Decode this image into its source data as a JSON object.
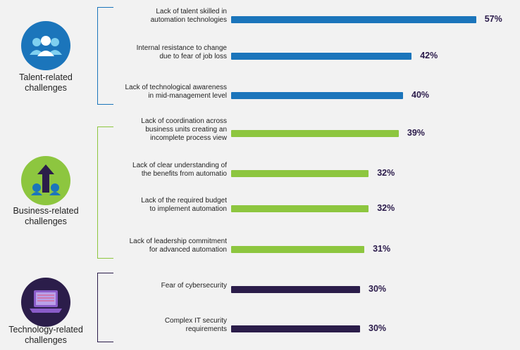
{
  "colors": {
    "talent": "#1b75bb",
    "business": "#8dc63f",
    "technology": "#2b1d4a"
  },
  "groups": [
    {
      "key": "talent",
      "label_line1": "Talent-related",
      "label_line2": "challenges",
      "icon": "people-icon"
    },
    {
      "key": "business",
      "label_line1": "Business-related",
      "label_line2": "challenges",
      "icon": "growth-arrow-icon"
    },
    {
      "key": "technology",
      "label_line1": "Technology-related",
      "label_line2": "challenges",
      "icon": "laptop-icon"
    }
  ],
  "chart_data": {
    "type": "bar",
    "orientation": "horizontal",
    "xlim": [
      0,
      60
    ],
    "bars": [
      {
        "group": "talent",
        "lines": [
          "Lack of talent skilled in",
          "automation technologies"
        ],
        "value": 57,
        "value_label": "57%"
      },
      {
        "group": "talent",
        "lines": [
          "Internal resistance to change",
          "due to fear of job loss"
        ],
        "value": 42,
        "value_label": "42%"
      },
      {
        "group": "talent",
        "lines": [
          "Lack of technological awareness",
          "in mid-management level"
        ],
        "value": 40,
        "value_label": "40%"
      },
      {
        "group": "business",
        "lines": [
          "Lack of coordination across",
          "business units creating an",
          "incomplete process view"
        ],
        "value": 39,
        "value_label": "39%"
      },
      {
        "group": "business",
        "lines": [
          "Lack of clear understanding of",
          "the benefits from automatio"
        ],
        "value": 32,
        "value_label": "32%"
      },
      {
        "group": "business",
        "lines": [
          "Lack of the required budget",
          "to implement automation"
        ],
        "value": 32,
        "value_label": "32%"
      },
      {
        "group": "business",
        "lines": [
          "Lack of leadership commitment",
          "for advanced automation"
        ],
        "value": 31,
        "value_label": "31%"
      },
      {
        "group": "technology",
        "lines": [
          "Fear of cybersecurity"
        ],
        "value": 30,
        "value_label": "30%"
      },
      {
        "group": "technology",
        "lines": [
          "Complex IT security",
          "requirements"
        ],
        "value": 30,
        "value_label": "30%"
      }
    ]
  }
}
